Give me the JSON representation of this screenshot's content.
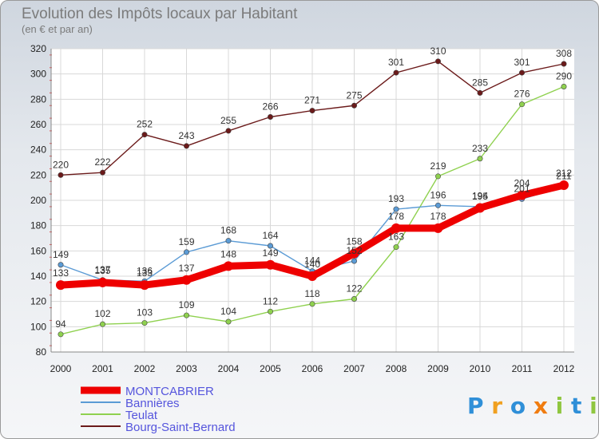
{
  "chart_data": {
    "type": "line",
    "title": "Evolution des Impôts locaux par Habitant",
    "subtitle": "(en € et par an)",
    "xlabel": "",
    "ylabel": "",
    "ylim": [
      80,
      320
    ],
    "yticks": [
      80,
      100,
      120,
      140,
      160,
      180,
      200,
      220,
      240,
      260,
      280,
      300,
      320
    ],
    "categories": [
      "2000",
      "2001",
      "2002",
      "2003",
      "2004",
      "2005",
      "2006",
      "2007",
      "2008",
      "2009",
      "2010",
      "2011",
      "2012"
    ],
    "grid": true,
    "legend_position": "bottom-left",
    "series": [
      {
        "name": "Bourg-Saint-Bernard",
        "color": "#6b1a1a",
        "values": [
          220,
          222,
          252,
          243,
          255,
          266,
          271,
          275,
          301,
          310,
          285,
          301,
          308
        ]
      },
      {
        "name": "Teulat",
        "color": "#8fd14f",
        "values": [
          94,
          102,
          103,
          109,
          104,
          112,
          118,
          122,
          163,
          219,
          233,
          276,
          290
        ]
      },
      {
        "name": "Bannières",
        "color": "#5b9bd5",
        "values": [
          149,
          137,
          136,
          159,
          168,
          164,
          144,
          152,
          193,
          196,
          195,
          201,
          211
        ]
      },
      {
        "name": "MONTCABRIER",
        "color": "#ee0000",
        "values": [
          133,
          135,
          133,
          137,
          148,
          149,
          140,
          158,
          178,
          178,
          194,
          204,
          212
        ]
      }
    ],
    "legend": [
      "MONTCABRIER",
      "Bannières",
      "Teulat",
      "Bourg-Saint-Bernard"
    ]
  },
  "logo": {
    "letters": [
      "P",
      "r",
      "o",
      "x",
      "i",
      "t",
      "i"
    ]
  }
}
